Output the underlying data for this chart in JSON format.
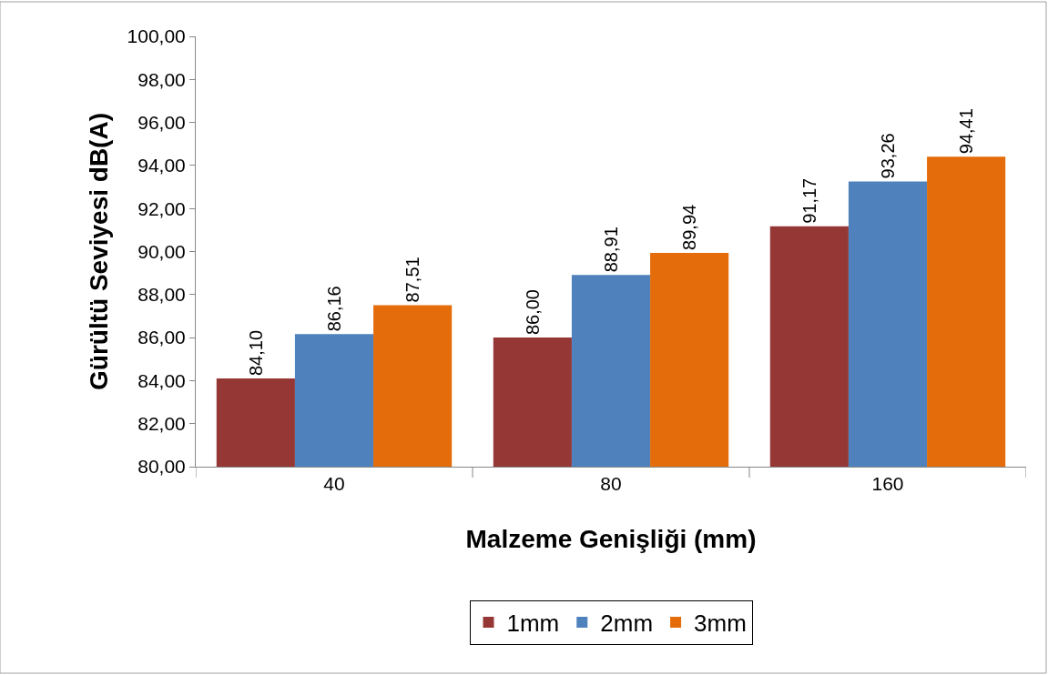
{
  "chart_data": {
    "type": "bar",
    "xlabel": "Malzeme Genişliği (mm)",
    "ylabel": "Gürültü Seviyesi dB(A)",
    "categories": [
      "40",
      "80",
      "160"
    ],
    "series": [
      {
        "name": "1mm",
        "color": "#953735",
        "values": [
          84.1,
          86.0,
          91.17
        ],
        "value_labels": [
          "84,10",
          "86,00",
          "91,17"
        ]
      },
      {
        "name": "2mm",
        "color": "#4f81bd",
        "values": [
          86.16,
          88.91,
          93.26
        ],
        "value_labels": [
          "86,16",
          "88,91",
          "93,26"
        ]
      },
      {
        "name": "3mm",
        "color": "#e46c0a",
        "values": [
          87.51,
          89.94,
          94.41
        ],
        "value_labels": [
          "87,51",
          "89,94",
          "94,41"
        ]
      }
    ],
    "ylim": [
      80,
      100
    ],
    "yticks": [
      {
        "value": 80,
        "label": "80,00"
      },
      {
        "value": 82,
        "label": "82,00"
      },
      {
        "value": 84,
        "label": "84,00"
      },
      {
        "value": 86,
        "label": "86,00"
      },
      {
        "value": 88,
        "label": "88,00"
      },
      {
        "value": 90,
        "label": "90,00"
      },
      {
        "value": 92,
        "label": "92,00"
      },
      {
        "value": 94,
        "label": "94,00"
      },
      {
        "value": 96,
        "label": "96,00"
      },
      {
        "value": 98,
        "label": "98,00"
      },
      {
        "value": 100,
        "label": "100,00"
      }
    ],
    "legend": "bottom"
  }
}
